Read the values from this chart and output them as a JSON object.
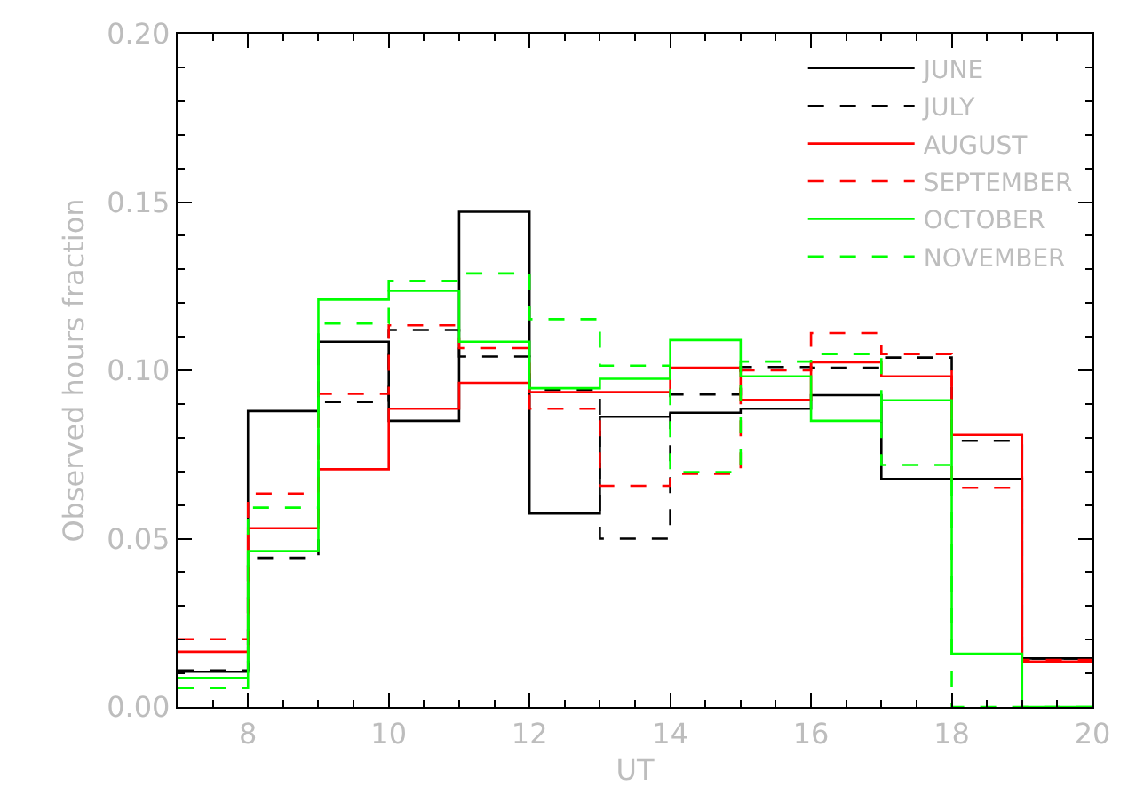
{
  "chart_data": {
    "type": "histogram",
    "xlabel": "UT",
    "ylabel": "Observed hours fraction",
    "bins": [
      7,
      8,
      9,
      10,
      11,
      12,
      13,
      14,
      15,
      16,
      17,
      18,
      19,
      20
    ],
    "xlim": [
      7,
      20
    ],
    "xticks": [
      8,
      10,
      12,
      14,
      16,
      18,
      20
    ],
    "ylim": [
      0,
      0.2
    ],
    "yticks": [
      {
        "value": 0,
        "label": "0.00"
      },
      0.05,
      {
        "value": 0.1,
        "label": "0.10"
      },
      0.15,
      {
        "value": 0.2,
        "label": "0.20"
      }
    ],
    "legend": "top right",
    "marker": "none",
    "series": [
      {
        "name": "JUNE",
        "color": "#000000",
        "line_style": "solid",
        "values": [
          0.0105,
          0.0879,
          0.1085,
          0.085,
          0.1471,
          0.0575,
          0.0862,
          0.0874,
          0.0886,
          0.0926,
          0.0677,
          0.0677,
          0.0144
        ]
      },
      {
        "name": "JULY",
        "color": "#000000",
        "line_style": "dashed",
        "values": [
          0.0109,
          0.0443,
          0.0906,
          0.112,
          0.1041,
          0.0942,
          0.05,
          0.0928,
          0.101,
          0.1008,
          0.1038,
          0.0791,
          0.0144
        ]
      },
      {
        "name": "AUGUST",
        "color": "#ff0000",
        "line_style": "solid",
        "values": [
          0.0164,
          0.0531,
          0.0706,
          0.0886,
          0.0963,
          0.0935,
          0.0935,
          0.1008,
          0.0912,
          0.1024,
          0.0982,
          0.0808,
          0.0135
        ]
      },
      {
        "name": "SEPTEMBER",
        "color": "#ff0000",
        "line_style": "dashed",
        "values": [
          0.0201,
          0.0634,
          0.093,
          0.1134,
          0.1066,
          0.0886,
          0.0657,
          0.0693,
          0.1,
          0.1111,
          0.1048,
          0.0651,
          0.014
        ]
      },
      {
        "name": "OCTOBER",
        "color": "#00ff00",
        "line_style": "solid",
        "values": [
          0.0086,
          0.0463,
          0.121,
          0.1236,
          0.1085,
          0.0947,
          0.0975,
          0.109,
          0.0982,
          0.085,
          0.0911,
          0.0158,
          0.0
        ]
      },
      {
        "name": "NOVEMBER",
        "color": "#00ff00",
        "line_style": "dashed",
        "values": [
          0.0056,
          0.0592,
          0.1139,
          0.1266,
          0.1288,
          0.1152,
          0.1014,
          0.0698,
          0.1026,
          0.1048,
          0.0719,
          0.0,
          0.0
        ]
      }
    ]
  }
}
